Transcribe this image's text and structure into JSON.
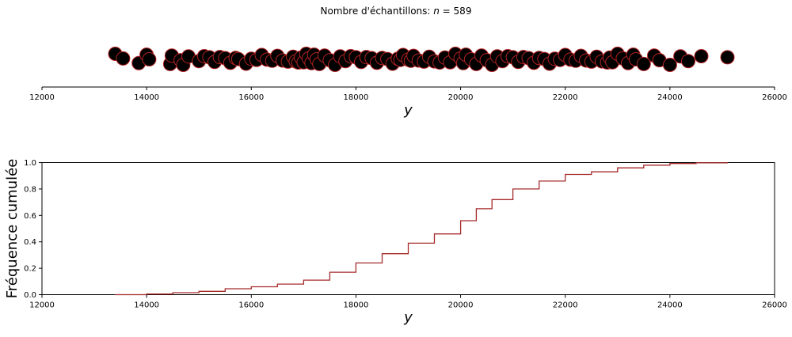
{
  "title_prefix": "Nombre d'échantillons: ",
  "title_var": "n",
  "title_eq": " = ",
  "n": "589",
  "colors": {
    "marker_fill": "#000000",
    "marker_edge": "#b22222",
    "ecdf_line": "#a52a2a",
    "axis": "#000000"
  },
  "chart_data": [
    {
      "type": "scatter",
      "kind": "strip",
      "xlabel": "y",
      "xlim": [
        12000,
        26000
      ],
      "xticks": [
        12000,
        14000,
        16000,
        18000,
        20000,
        22000,
        24000,
        26000
      ],
      "x": [
        13400,
        13550,
        13850,
        14000,
        14050,
        14450,
        14480,
        14650,
        14700,
        14800,
        15000,
        15100,
        15200,
        15300,
        15400,
        15500,
        15600,
        15700,
        15750,
        15900,
        16000,
        16100,
        16200,
        16300,
        16400,
        16500,
        16600,
        16700,
        16800,
        16850,
        16900,
        16950,
        17000,
        17050,
        17100,
        17150,
        17200,
        17250,
        17300,
        17400,
        17500,
        17600,
        17700,
        17800,
        17900,
        18000,
        18100,
        18200,
        18300,
        18400,
        18500,
        18600,
        18700,
        18800,
        18850,
        18900,
        19000,
        19050,
        19100,
        19200,
        19300,
        19400,
        19500,
        19600,
        19700,
        19800,
        19900,
        20000,
        20050,
        20100,
        20200,
        20300,
        20400,
        20500,
        20600,
        20700,
        20800,
        20900,
        21000,
        21100,
        21200,
        21300,
        21400,
        21500,
        21600,
        21700,
        21800,
        21900,
        22000,
        22100,
        22200,
        22300,
        22400,
        22500,
        22600,
        22700,
        22800,
        22850,
        22900,
        23000,
        23100,
        23200,
        23300,
        23350,
        23500,
        23700,
        23800,
        24000,
        24200,
        24350,
        24600,
        25100
      ],
      "note": "",
      "grid": false
    },
    {
      "type": "line",
      "kind": "ecdf",
      "xlabel": "y",
      "ylabel": "Fréquence cumulée",
      "xlim": [
        12000,
        26000
      ],
      "ylim": [
        0,
        1
      ],
      "xticks": [
        12000,
        14000,
        16000,
        18000,
        20000,
        22000,
        24000,
        26000
      ],
      "yticks": [
        0.0,
        0.2,
        0.4,
        0.6,
        0.8,
        1.0
      ],
      "ytick_labels": [
        "0.0",
        "0.2",
        "0.4",
        "0.6",
        "0.8",
        "1.0"
      ],
      "x": [
        13400,
        14000,
        14500,
        15000,
        15500,
        16000,
        16500,
        17000,
        17500,
        18000,
        18500,
        19000,
        19500,
        20000,
        20300,
        20600,
        21000,
        21500,
        22000,
        22500,
        23000,
        23500,
        24000,
        24500,
        25100
      ],
      "y": [
        0.0,
        0.005,
        0.015,
        0.025,
        0.045,
        0.06,
        0.08,
        0.11,
        0.17,
        0.24,
        0.31,
        0.39,
        0.46,
        0.56,
        0.65,
        0.72,
        0.8,
        0.86,
        0.91,
        0.93,
        0.96,
        0.98,
        0.993,
        0.998,
        1.0
      ],
      "grid": false
    }
  ]
}
